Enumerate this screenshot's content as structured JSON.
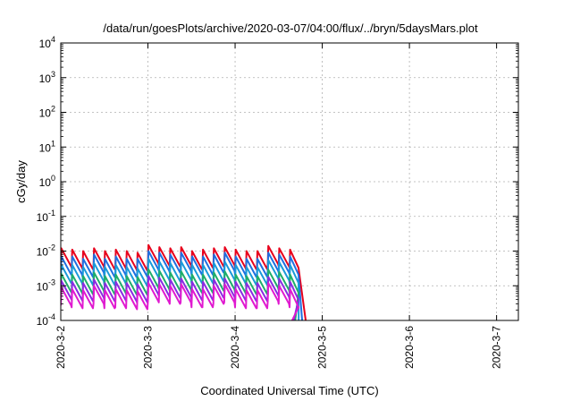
{
  "chart_data": {
    "type": "line",
    "title": "/data/run/goesPlots/archive/2020-03-07/04:00/flux/../bryn/5daysMars.plot",
    "xlabel": "Coordinated Universal Time (UTC)",
    "ylabel": "cGy/day",
    "y_scale": "log",
    "xlim": [
      "2020-03-02",
      "2020-03-07 06:00"
    ],
    "ylim": [
      0.0001,
      10000
    ],
    "grid": true,
    "x_tick_labels": [
      "2020-3-2",
      "2020-3-3",
      "2020-3-4",
      "2020-3-5",
      "2020-3-6",
      "2020-3-7"
    ],
    "y_ticks": [
      {
        "base": "10",
        "exp": "-4"
      },
      {
        "base": "10",
        "exp": "-3"
      },
      {
        "base": "10",
        "exp": "-2"
      },
      {
        "base": "10",
        "exp": "-1"
      },
      {
        "base": "10",
        "exp": "0"
      },
      {
        "base": "10",
        "exp": "1"
      },
      {
        "base": "10",
        "exp": "2"
      },
      {
        "base": "10",
        "exp": "3"
      },
      {
        "base": "10",
        "exp": "4"
      }
    ],
    "peaks_hours": [
      0,
      3,
      6,
      9,
      12,
      15,
      18,
      21,
      24,
      27,
      30,
      33,
      36,
      39,
      42,
      45,
      48,
      51,
      54,
      57,
      60,
      63
    ],
    "series": [
      {
        "color": "#e8001c",
        "peaks": [
          0.012,
          0.011,
          0.01,
          0.012,
          0.01,
          0.011,
          0.01,
          0.009,
          0.015,
          0.013,
          0.012,
          0.013,
          0.01,
          0.011,
          0.012,
          0.013,
          0.011,
          0.01,
          0.01,
          0.014,
          0.012,
          0.011
        ],
        "end_hours": 67.5,
        "end_value": 0.0001
      },
      {
        "color": "#1f6fe0",
        "peaks": [
          0.007,
          0.007,
          0.006,
          0.008,
          0.006,
          0.007,
          0.006,
          0.006,
          0.01,
          0.009,
          0.008,
          0.009,
          0.007,
          0.007,
          0.008,
          0.009,
          0.007,
          0.006,
          0.006,
          0.009,
          0.008,
          0.007
        ],
        "end_hours": 66.5,
        "end_value": 0.0001
      },
      {
        "color": "#1a9ad9",
        "peaks": [
          0.004,
          0.004,
          0.0035,
          0.0045,
          0.0035,
          0.004,
          0.0035,
          0.0032,
          0.006,
          0.005,
          0.0045,
          0.005,
          0.004,
          0.004,
          0.0045,
          0.005,
          0.004,
          0.0035,
          0.0035,
          0.0055,
          0.0048,
          0.004
        ],
        "end_hours": 65.5,
        "end_value": 0.0001
      },
      {
        "color": "#1fae6a",
        "peaks": [
          0.0022,
          0.0021,
          0.0019,
          0.0024,
          0.0019,
          0.0021,
          0.0019,
          0.0018,
          0.003,
          0.0027,
          0.0024,
          0.0026,
          0.0021,
          0.0021,
          0.0024,
          0.0026,
          0.0021,
          0.0019,
          0.0019,
          0.0029,
          0.0025,
          0.0021
        ],
        "end_hours": 64.5,
        "end_value": 0.0001
      },
      {
        "color": "#8a2be2",
        "peaks": [
          0.0014,
          0.0013,
          0.0012,
          0.0015,
          0.0012,
          0.0013,
          0.0012,
          0.0011,
          0.0019,
          0.0017,
          0.0015,
          0.0016,
          0.0013,
          0.0013,
          0.0015,
          0.0016,
          0.0013,
          0.0012,
          0.0012,
          0.0018,
          0.0016,
          0.0013
        ],
        "end_hours": 64.0,
        "end_value": 0.0001
      },
      {
        "color": "#e01ad0",
        "peaks": [
          0.0009,
          0.0008,
          0.00075,
          0.001,
          0.00075,
          0.0008,
          0.00075,
          0.0007,
          0.0012,
          0.0011,
          0.001,
          0.0011,
          0.0008,
          0.0008,
          0.001,
          0.0011,
          0.0008,
          0.00075,
          0.00075,
          0.0012,
          0.001,
          0.0008
        ],
        "end_hours": 63.5,
        "end_value": 0.0001
      }
    ]
  }
}
